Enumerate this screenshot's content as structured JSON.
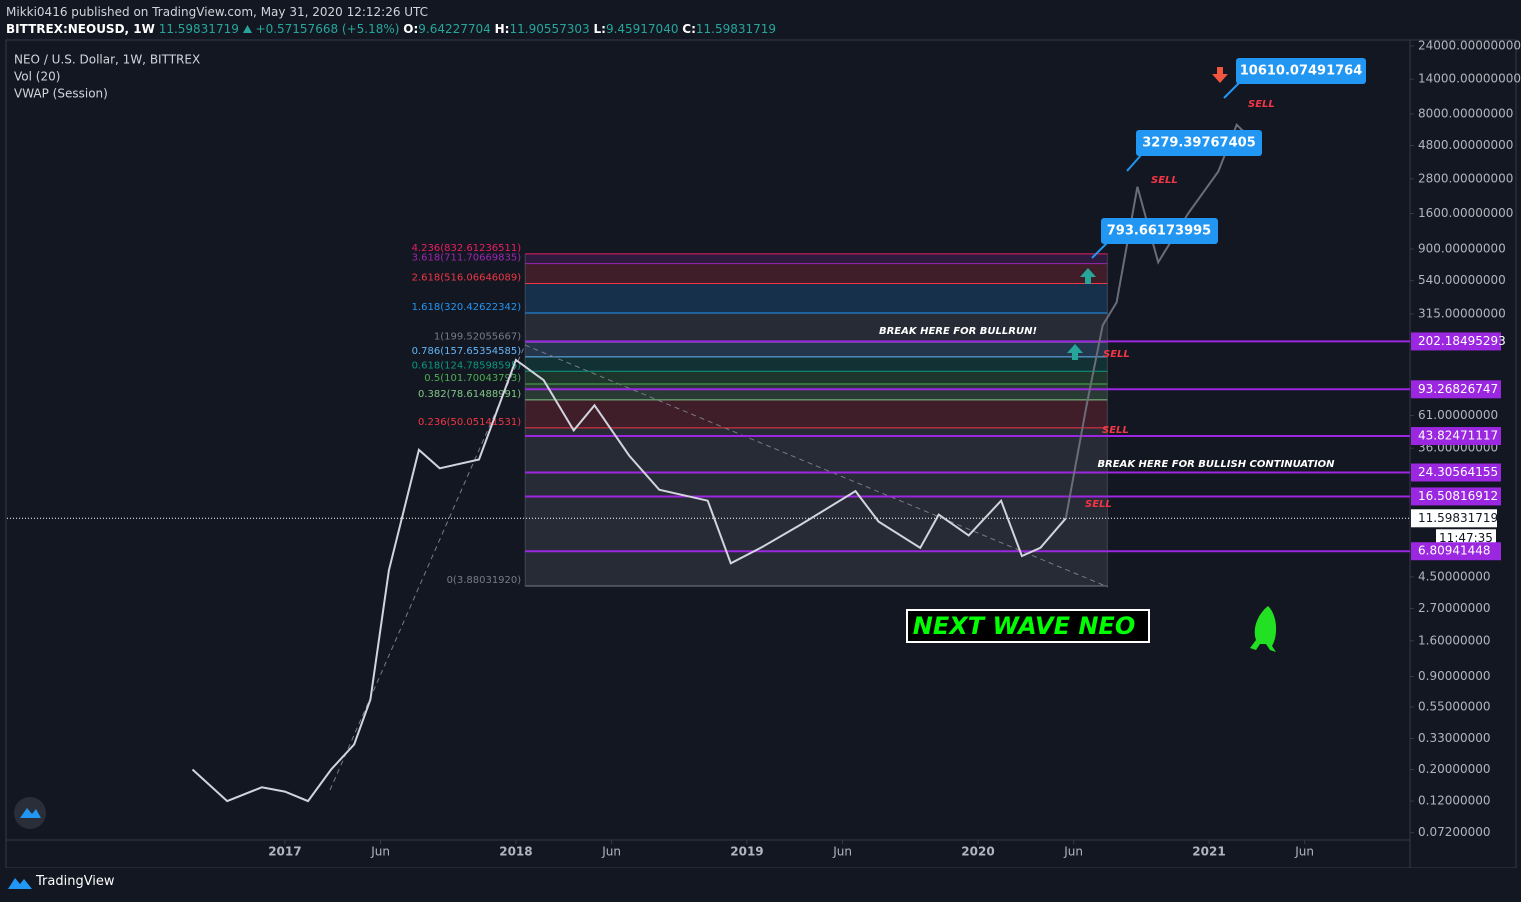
{
  "header": {
    "publisher": "Mikki0416 published on TradingView.com, May 31, 2020 12:12:26 UTC",
    "symbol": "BITTREX:NEOUSD, 1W",
    "last": "11.59831719",
    "change": "+0.57157668 (+5.18%)",
    "quote": [
      {
        "label": "O:",
        "value": "9.64227704"
      },
      {
        "label": "H:",
        "value": "11.90557303"
      },
      {
        "label": "L:",
        "value": "9.45917040"
      },
      {
        "label": "C:",
        "value": "11.59831719"
      }
    ]
  },
  "chart_data": {
    "type": "line",
    "title": "NEO / U.S. Dollar, 1W, BITTREX",
    "indicators": [
      "Vol (20)",
      "VWAP (Session)"
    ],
    "log_scale": true,
    "ylim": [
      0.064,
      26400
    ],
    "yticks": [
      {
        "value": 24000,
        "label": "24000.00000000"
      },
      {
        "value": 14000,
        "label": "14000.00000000"
      },
      {
        "value": 8000,
        "label": "8000.00000000"
      },
      {
        "value": 4800,
        "label": "4800.00000000"
      },
      {
        "value": 2800,
        "label": "2800.00000000"
      },
      {
        "value": 1600,
        "label": "1600.00000000"
      },
      {
        "value": 900,
        "label": "900.00000000"
      },
      {
        "value": 540,
        "label": "540.00000000"
      },
      {
        "value": 315,
        "label": "315.00000000"
      },
      {
        "value": 61,
        "label": "61.00000000"
      },
      {
        "value": 36,
        "label": "36.00000000"
      },
      {
        "value": 4.5,
        "label": "4.50000000"
      },
      {
        "value": 2.7,
        "label": "2.70000000"
      },
      {
        "value": 1.6,
        "label": "1.60000000"
      },
      {
        "value": 0.9,
        "label": "0.90000000"
      },
      {
        "value": 0.55,
        "label": "0.55000000"
      },
      {
        "value": 0.33,
        "label": "0.33000000"
      },
      {
        "value": 0.2,
        "label": "0.20000000"
      },
      {
        "value": 0.12,
        "label": "0.12000000"
      },
      {
        "value": 0.072,
        "label": "0.07200000"
      }
    ],
    "xlim": [
      2015.797,
      2021.87
    ],
    "xticks": [
      2017,
      {
        "value": 2017.414,
        "label": "Jun"
      },
      2018,
      {
        "value": 2018.414,
        "label": "Jun"
      },
      2019,
      {
        "value": 2019.414,
        "label": "Jun"
      },
      2020,
      {
        "value": 2020.414,
        "label": "Jun"
      },
      2021,
      {
        "value": 2021.414,
        "label": "Jun"
      }
    ],
    "series": [
      {
        "color": "#d1d4dc",
        "x": [
          2016.6,
          2016.75,
          2016.9,
          2017.0,
          2017.1,
          2017.2,
          2017.3,
          2017.37,
          2017.45,
          2017.58,
          2017.67,
          2017.84,
          2018.0,
          2018.12,
          2018.25,
          2018.34,
          2018.49,
          2018.62,
          2018.83,
          2018.93,
          2019.06,
          2019.23,
          2019.47,
          2019.57,
          2019.75,
          2019.83,
          2019.96,
          2020.1,
          2020.19,
          2020.27,
          2020.38
        ],
        "values": [
          0.2,
          0.12,
          0.15,
          0.14,
          0.12,
          0.2,
          0.3,
          0.62,
          5,
          35,
          26,
          30,
          150,
          108,
          48,
          72,
          32,
          18.4,
          15.4,
          5.6,
          7.2,
          10.4,
          18,
          11,
          7.2,
          12.3,
          8.8,
          15.4,
          6.3,
          7.2,
          11.6
        ]
      },
      {
        "color": "#6a6d78",
        "x": [
          2020.38,
          2020.47,
          2020.54,
          2020.6,
          2020.69,
          2020.78,
          2020.91,
          2021.04,
          2021.12,
          2021.19
        ],
        "values": [
          11.6,
          72,
          263,
          380,
          2460,
          726,
          1600,
          3150,
          6700,
          5200
        ]
      }
    ],
    "fib": {
      "x": [
        2018.04,
        2020.56
      ],
      "levels": [
        {
          "label": "0(3.88031920)",
          "value": 3.8803192,
          "color": "#787b86"
        },
        {
          "label": "0.236(50.05141531)",
          "value": 50.05141531,
          "color": "#f23645"
        },
        {
          "label": "0.382(78.61488991)",
          "value": 78.61488991,
          "color": "#81c784"
        },
        {
          "label": "0.5(101.70043793)",
          "value": 101.70043793,
          "color": "#4caf50"
        },
        {
          "label": "0.618(124.78598595)",
          "value": 124.78598595,
          "color": "#089981"
        },
        {
          "label": "0.786(157.65354585)",
          "value": 157.65354585,
          "color": "#64b5f6"
        },
        {
          "label": "1(199.52055667)",
          "value": 199.52055667,
          "color": "#787b86"
        },
        {
          "label": "1.618(320.42622342)",
          "value": 320.42622342,
          "color": "#2196f3"
        },
        {
          "label": "2.618(516.06646089)",
          "value": 516.06646089,
          "color": "#f23645"
        },
        {
          "label": "3.618(711.70669835)",
          "value": 711.70669835,
          "color": "#9c27b0"
        },
        {
          "label": "4.236(832.61236511)",
          "value": 832.61236511,
          "color": "#e91e63"
        }
      ]
    },
    "levels": [
      202.18495293,
      93.26826747,
      43.82471117,
      24.30564155,
      16.50816912,
      6.80941448
    ],
    "level_color": "#9c27e0",
    "current_price": 11.59831719,
    "countdown": "11:47:35",
    "callouts": [
      "10610.07491764",
      "3279.39767405",
      "793.66173995"
    ],
    "annotations": [
      "BREAK HERE FOR BULLRUN!",
      "BREAK HERE FOR BULLISH CONTINUATION",
      "NEXT WAVE NEO"
    ],
    "sell_labels": [
      "SELL",
      "SELL",
      "SELL",
      "SELL",
      "SELL"
    ]
  },
  "footer": "TradingView"
}
